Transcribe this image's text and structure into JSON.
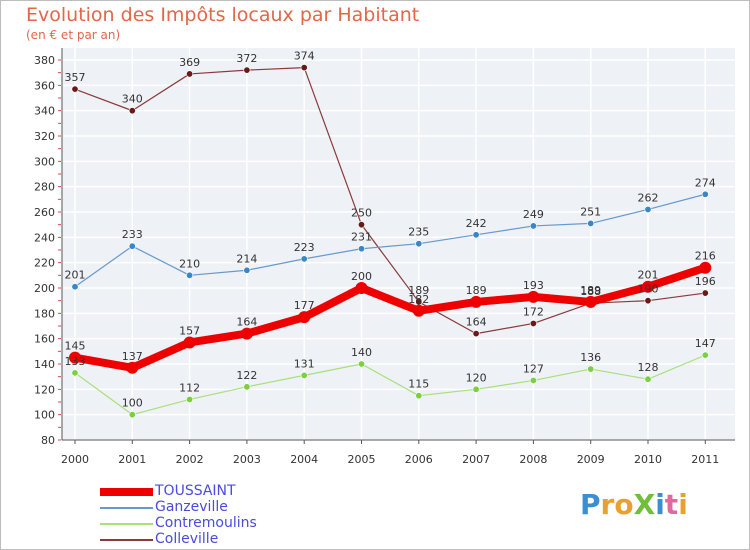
{
  "title": "Evolution des Impôts locaux par Habitant",
  "subtitle": "(en € et par an)",
  "brand": {
    "text": "ProXiti",
    "letters": [
      {
        "ch": "P",
        "color": "#3a8fd4"
      },
      {
        "ch": "r",
        "color": "#e8a030"
      },
      {
        "ch": "o",
        "color": "#e8a030"
      },
      {
        "ch": "X",
        "color": "#6fbf3a"
      },
      {
        "ch": "i",
        "color": "#3a8fd4"
      },
      {
        "ch": "t",
        "color": "#e06aa0"
      },
      {
        "ch": "i",
        "color": "#e8a030"
      }
    ]
  },
  "chart_data": {
    "type": "line",
    "title": "Evolution des Impôts locaux par Habitant",
    "subtitle": "(en € et par an)",
    "x": [
      "2000",
      "2001",
      "2002",
      "2003",
      "2004",
      "2005",
      "2006",
      "2007",
      "2008",
      "2009",
      "2010",
      "2011"
    ],
    "ylim": [
      80,
      380
    ],
    "yticks": [
      80,
      100,
      120,
      140,
      160,
      180,
      200,
      220,
      240,
      260,
      280,
      300,
      320,
      340,
      360,
      380
    ],
    "grid": true,
    "legend_position": "bottom-left",
    "series": [
      {
        "name": "TOUSSAINT",
        "color": "#ee0000",
        "dot": "#ee0000",
        "width": 8,
        "radius": 6,
        "values": [
          145,
          137,
          157,
          164,
          177,
          200,
          182,
          189,
          193,
          189,
          201,
          216
        ]
      },
      {
        "name": "Ganzeville",
        "color": "#6699cc",
        "dot": "#3a87c8",
        "width": 1.2,
        "radius": 3.2,
        "values": [
          201,
          233,
          210,
          214,
          223,
          231,
          235,
          242,
          249,
          251,
          262,
          274
        ]
      },
      {
        "name": "Contremoulins",
        "color": "#a8e07a",
        "dot": "#7ccf40",
        "width": 1.2,
        "radius": 3.2,
        "values": [
          133,
          100,
          112,
          122,
          131,
          140,
          115,
          120,
          127,
          136,
          128,
          147
        ]
      },
      {
        "name": "Colleville",
        "color": "#8a3a3a",
        "dot": "#6a1818",
        "width": 1.2,
        "radius": 3.2,
        "values": [
          357,
          340,
          369,
          372,
          374,
          250,
          189,
          164,
          172,
          188,
          190,
          196
        ]
      }
    ]
  }
}
